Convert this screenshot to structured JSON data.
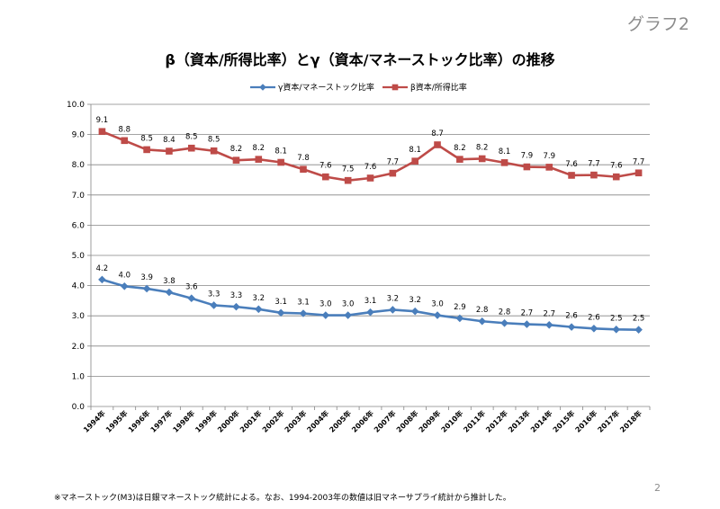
{
  "slide_label": "グラフ2",
  "page_number": "2",
  "footnote": "※マネーストック(M3)は日銀マネーストック統計による。なお、1994-2003年の数値は旧マネーサプライ統計から推計した。",
  "chart_data": {
    "type": "line",
    "title": "β（資本/所得比率）とγ（資本/マネーストック比率）の推移",
    "xlabel": "",
    "ylabel": "",
    "ylim": [
      0,
      10
    ],
    "yticks": [
      "0.0",
      "1.0",
      "2.0",
      "3.0",
      "4.0",
      "5.0",
      "6.0",
      "7.0",
      "8.0",
      "9.0",
      "10.0"
    ],
    "grid": true,
    "legend_position": "top",
    "categories": [
      "1994年",
      "1995年",
      "1996年",
      "1997年",
      "1998年",
      "1999年",
      "2000年",
      "2001年",
      "2002年",
      "2003年",
      "2004年",
      "2005年",
      "2006年",
      "2007年",
      "2008年",
      "2009年",
      "2010年",
      "2011年",
      "2012年",
      "2013年",
      "2014年",
      "2015年",
      "2016年",
      "2017年",
      "2018年"
    ],
    "series": [
      {
        "name": "γ資本/マネーストック比率",
        "color": "#4a7ebb",
        "marker": "diamond",
        "values": [
          4.2,
          3.98,
          3.9,
          3.78,
          3.58,
          3.35,
          3.3,
          3.22,
          3.1,
          3.08,
          3.02,
          3.02,
          3.12,
          3.2,
          3.15,
          3.02,
          2.92,
          2.82,
          2.76,
          2.72,
          2.7,
          2.63,
          2.58,
          2.55,
          2.54
        ],
        "labels": [
          "4.2",
          "4.0",
          "3.9",
          "3.8",
          "3.6",
          "3.3",
          "3.3",
          "3.2",
          "3.1",
          "3.1",
          "3.0",
          "3.0",
          "3.1",
          "3.2",
          "3.2",
          "3.0",
          "2.9",
          "2.8",
          "2.8",
          "2.7",
          "2.7",
          "2.6",
          "2.6",
          "2.5",
          "2.5"
        ]
      },
      {
        "name": "β資本/所得比率",
        "color": "#be4b48",
        "marker": "square",
        "values": [
          9.1,
          8.8,
          8.5,
          8.45,
          8.55,
          8.46,
          8.15,
          8.18,
          8.08,
          7.85,
          7.6,
          7.48,
          7.56,
          7.72,
          8.12,
          8.66,
          8.18,
          8.2,
          8.07,
          7.93,
          7.92,
          7.65,
          7.66,
          7.6,
          7.73
        ],
        "labels": [
          "9.1",
          "8.8",
          "8.5",
          "8.4",
          "8.5",
          "8.5",
          "8.2",
          "8.2",
          "8.1",
          "7.8",
          "7.6",
          "7.5",
          "7.6",
          "7.7",
          "8.1",
          "8.7",
          "8.2",
          "8.2",
          "8.1",
          "7.9",
          "7.9",
          "7.6",
          "7.7",
          "7.6",
          "7.7"
        ]
      }
    ]
  }
}
